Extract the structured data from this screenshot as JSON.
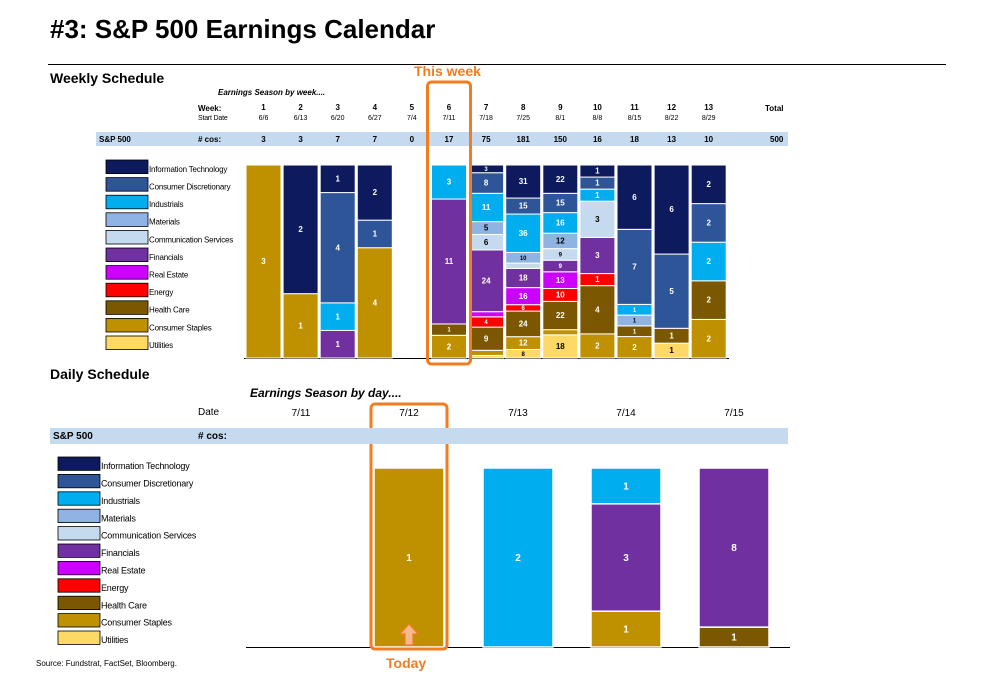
{
  "title": "#3: S&P 500 Earnings Calendar",
  "source": "Source: Fundstrat, FactSet, Bloomberg.",
  "colors": {
    "Information Technology": "#0d1b5e",
    "Consumer Discretionary": "#2e5597",
    "Industrials": "#00aeef",
    "Materials": "#8fb4e3",
    "Communication Services": "#c5d9ef",
    "Financials": "#7030a0",
    "Real Estate": "#cc00ff",
    "Energy": "#ff0000",
    "Health Care": "#7a5700",
    "Consumer Staples": "#bf9000",
    "Utilities": "#ffd966",
    "band": "#c5d9ef",
    "highlight": "#f07d22"
  },
  "weekly": {
    "section_title": "Weekly Schedule",
    "callout": "This week",
    "subtitle": "Earnings Season by week....",
    "week_label": "Week:",
    "start_label": "Start Date",
    "row_label": "S&P 500",
    "cos_label": "# cos:",
    "total_label": "Total",
    "total_value": "500"
  },
  "daily": {
    "section_title": "Daily Schedule",
    "subtitle": "Earnings Season by day....",
    "date_label": "Date",
    "row_label": "S&P 500",
    "cos_label": "# cos:",
    "today_label": "Today"
  },
  "legend": [
    "Information Technology",
    "Consumer Discretionary",
    "Industrials",
    "Materials",
    "Communication Services",
    "Financials",
    "Real Estate",
    "Energy",
    "Health Care",
    "Consumer Staples",
    "Utilities"
  ],
  "chart_data": [
    {
      "type": "bar",
      "stacked": true,
      "title": "Weekly Schedule",
      "subtitle": "Earnings Season by week....",
      "categories": [
        "1",
        "2",
        "3",
        "4",
        "5",
        "6",
        "7",
        "8",
        "9",
        "10",
        "11",
        "12",
        "13"
      ],
      "start_dates": [
        "6/6",
        "6/13",
        "6/20",
        "6/27",
        "7/4",
        "7/11",
        "7/18",
        "7/25",
        "8/1",
        "8/8",
        "8/15",
        "8/22",
        "8/29"
      ],
      "totals": [
        3,
        3,
        7,
        7,
        0,
        17,
        75,
        181,
        150,
        16,
        18,
        13,
        10
      ],
      "highlight_category": "6",
      "series": [
        {
          "name": "Information Technology",
          "values": [
            0,
            2,
            1,
            2,
            0,
            0,
            3,
            31,
            22,
            1,
            6,
            6,
            2
          ]
        },
        {
          "name": "Consumer Discretionary",
          "values": [
            0,
            0,
            4,
            1,
            0,
            0,
            8,
            15,
            15,
            1,
            7,
            5,
            2
          ]
        },
        {
          "name": "Industrials",
          "values": [
            0,
            0,
            1,
            0,
            0,
            3,
            11,
            36,
            16,
            1,
            1,
            0,
            2
          ]
        },
        {
          "name": "Materials",
          "values": [
            0,
            0,
            0,
            0,
            0,
            0,
            5,
            10,
            12,
            0,
            1,
            0,
            0
          ]
        },
        {
          "name": "Communication Services",
          "values": [
            0,
            0,
            0,
            0,
            0,
            0,
            6,
            5,
            9,
            3,
            0,
            0,
            0
          ]
        },
        {
          "name": "Financials",
          "values": [
            0,
            0,
            1,
            0,
            0,
            11,
            24,
            18,
            9,
            3,
            0,
            0,
            0
          ]
        },
        {
          "name": "Real Estate",
          "values": [
            0,
            0,
            0,
            0,
            0,
            0,
            2,
            16,
            13,
            0,
            0,
            0,
            0
          ]
        },
        {
          "name": "Energy",
          "values": [
            0,
            0,
            0,
            0,
            0,
            0,
            4,
            6,
            10,
            1,
            0,
            0,
            0
          ]
        },
        {
          "name": "Health Care",
          "values": [
            0,
            0,
            0,
            0,
            0,
            1,
            9,
            24,
            22,
            4,
            1,
            1,
            2
          ]
        },
        {
          "name": "Consumer Staples",
          "values": [
            3,
            1,
            0,
            4,
            0,
            2,
            2,
            12,
            4,
            2,
            2,
            0,
            2
          ]
        },
        {
          "name": "Utilities",
          "values": [
            0,
            0,
            0,
            0,
            0,
            0,
            1,
            8,
            18,
            0,
            0,
            1,
            0
          ]
        }
      ]
    },
    {
      "type": "bar",
      "stacked": true,
      "title": "Daily Schedule",
      "subtitle": "Earnings Season by day....",
      "categories": [
        "7/11",
        "7/12",
        "7/13",
        "7/14",
        "7/15"
      ],
      "totals": [
        0,
        1,
        2,
        5,
        9
      ],
      "highlight_category": "7/12",
      "series": [
        {
          "name": "Information Technology",
          "values": [
            0,
            0,
            0,
            0,
            0
          ]
        },
        {
          "name": "Consumer Discretionary",
          "values": [
            0,
            0,
            0,
            0,
            0
          ]
        },
        {
          "name": "Industrials",
          "values": [
            0,
            0,
            2,
            1,
            0
          ]
        },
        {
          "name": "Materials",
          "values": [
            0,
            0,
            0,
            0,
            0
          ]
        },
        {
          "name": "Communication Services",
          "values": [
            0,
            0,
            0,
            0,
            0
          ]
        },
        {
          "name": "Financials",
          "values": [
            0,
            0,
            0,
            3,
            8
          ]
        },
        {
          "name": "Real Estate",
          "values": [
            0,
            0,
            0,
            0,
            0
          ]
        },
        {
          "name": "Energy",
          "values": [
            0,
            0,
            0,
            0,
            0
          ]
        },
        {
          "name": "Health Care",
          "values": [
            0,
            0,
            0,
            0,
            1
          ]
        },
        {
          "name": "Consumer Staples",
          "values": [
            0,
            1,
            0,
            1,
            0
          ]
        },
        {
          "name": "Utilities",
          "values": [
            0,
            0,
            0,
            0,
            0
          ]
        }
      ]
    }
  ]
}
